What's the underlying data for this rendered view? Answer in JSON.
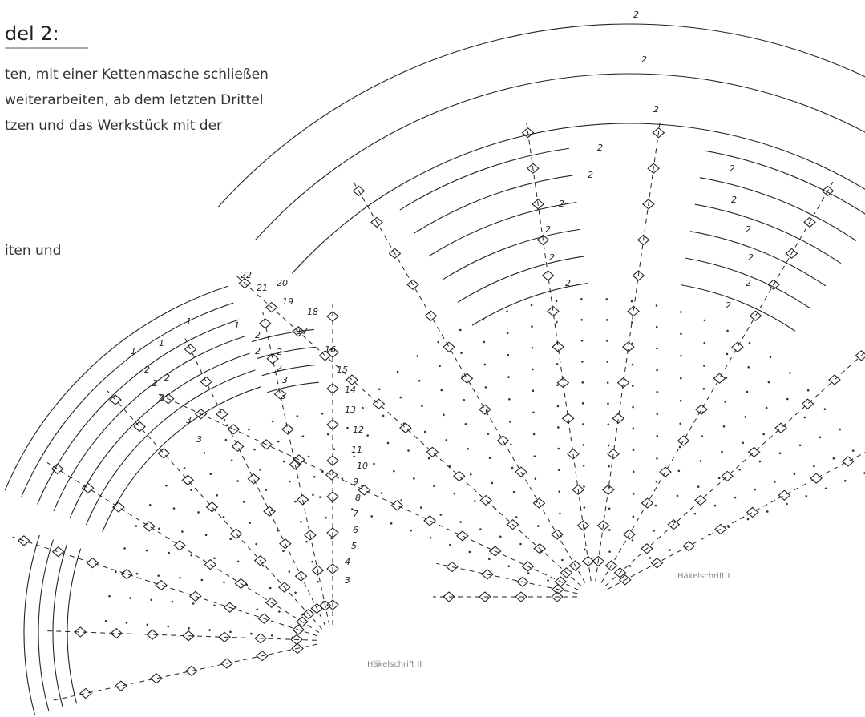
{
  "text": {
    "heading": "del 2:",
    "lines": [
      "ten, mit einer Kettenmasche schließen",
      "weiterarbeiten, ab dem letzten Drittel",
      "tzen und das Werkstück mit der",
      "iten und"
    ]
  },
  "diagram_1": {
    "caption": "Häkelschrift I",
    "row_labels": [
      "2",
      "2",
      "2",
      "2",
      "2",
      "2",
      "2",
      "2",
      "2",
      "2",
      "2",
      "2",
      "2",
      "2",
      "2"
    ]
  },
  "diagram_2": {
    "caption": "Häkelschrift II",
    "row_numbers": [
      "22",
      "21",
      "20",
      "19",
      "18",
      "17",
      "16",
      "15",
      "14",
      "13",
      "12",
      "11",
      "10",
      "9",
      "8",
      "7",
      "6",
      "5",
      "4",
      "3"
    ],
    "arc_labels": [
      "1",
      "1",
      "1",
      "2",
      "2",
      "2",
      "2",
      "3",
      "3",
      "1",
      "2",
      "2",
      "2",
      "2",
      "3",
      "3"
    ]
  }
}
